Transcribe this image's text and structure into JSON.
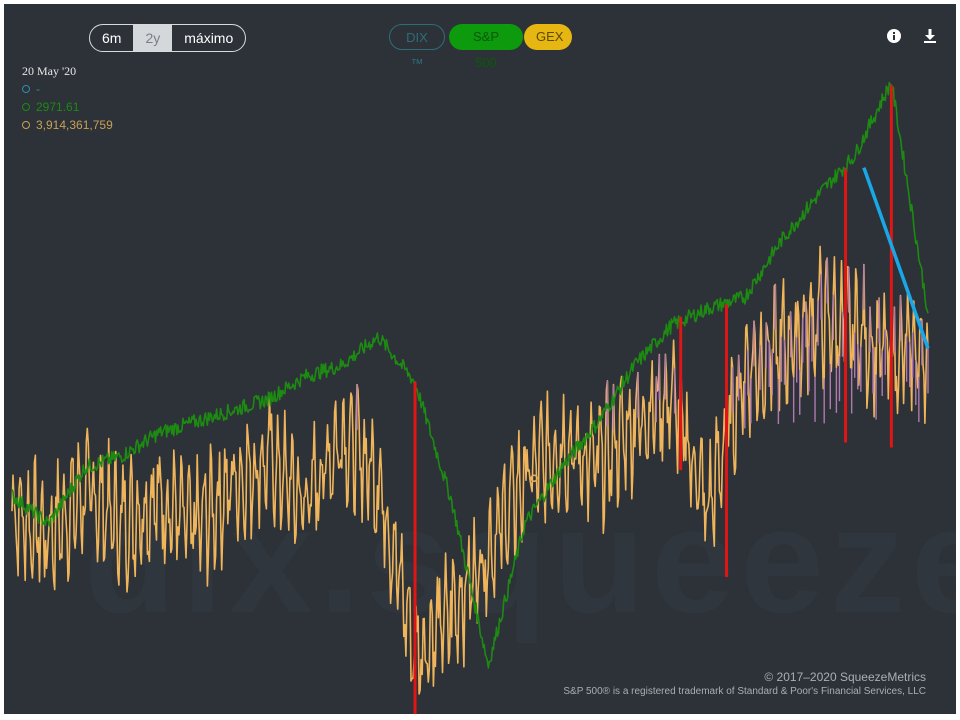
{
  "controls": {
    "range": [
      {
        "label": "6m",
        "active": false
      },
      {
        "label": "2y",
        "active": true
      },
      {
        "label": "máximo",
        "active": false
      }
    ],
    "series_toggles": [
      {
        "label": "DIX ™",
        "state": "off"
      },
      {
        "label": "S&P 500",
        "state": "on"
      },
      {
        "label": "GEX",
        "state": "on"
      }
    ],
    "icons": [
      "info-icon",
      "download-icon"
    ]
  },
  "legend": {
    "date": "20 May '20",
    "dix_value": "-",
    "sp_value": "2971.61",
    "gex_value": "3,914,361,759"
  },
  "watermark": "dix.squeeze.c",
  "footer": {
    "copyright": "© 2017–2020 SqueezeMetrics",
    "trademark": "S&P 500® is a registered trademark of Standard & Poor's Financial Services, LLC"
  },
  "colors": {
    "background": "#2c3238",
    "sp500": "#1d8a12",
    "gex": "#f0b45a",
    "gex_high": "#b07ab0",
    "annotation_red": "#e01515",
    "annotation_blue": "#1aa7e8",
    "dix": "#2f8fa8"
  },
  "chart_data": {
    "type": "line",
    "x_range": [
      "2018-05",
      "2020-05"
    ],
    "grid": false,
    "series": [
      {
        "name": "S&P 500",
        "key": "sp500",
        "x": [
          0,
          4,
          8,
          12,
          16,
          20,
          24,
          28,
          32,
          36,
          40,
          44,
          48,
          52,
          56,
          60,
          64,
          68,
          72,
          76,
          80,
          84,
          88,
          92,
          96,
          100
        ],
        "values": [
          2650,
          2600,
          2700,
          2720,
          2760,
          2780,
          2800,
          2820,
          2860,
          2880,
          2930,
          2850,
          2640,
          2351,
          2600,
          2700,
          2780,
          2880,
          2950,
          2980,
          3000,
          3100,
          3180,
          3250,
          3380,
          2971.61
        ]
      },
      {
        "name": "GEX",
        "key": "gex",
        "x": [
          0,
          4,
          8,
          12,
          16,
          20,
          24,
          28,
          32,
          36,
          40,
          44,
          48,
          52,
          56,
          60,
          64,
          68,
          72,
          76,
          80,
          84,
          88,
          92,
          96,
          100
        ],
        "values": [
          1400000000.0,
          1000000000.0,
          1700000000.0,
          1200000000.0,
          1600000000.0,
          1100000000.0,
          1800000000.0,
          2200000000.0,
          1500000000.0,
          2600000000.0,
          1900000000.0,
          -800000000.0,
          -200000000.0,
          800000000.0,
          1900000000.0,
          2400000000.0,
          2100000000.0,
          2800000000.0,
          3200000000.0,
          1400000000.0,
          3600000000.0,
          3900000000.0,
          4400000000.0,
          4200000000.0,
          3800000000.0,
          3914361759
        ]
      }
    ],
    "annotations": [
      {
        "type": "vertical-drop",
        "color": "red",
        "at_x": 44
      },
      {
        "type": "vertical-drop",
        "color": "red",
        "at_x": 73
      },
      {
        "type": "vertical-drop",
        "color": "red",
        "at_x": 78
      },
      {
        "type": "vertical-drop",
        "color": "red",
        "at_x": 91
      },
      {
        "type": "vertical-drop",
        "color": "red",
        "at_x": 96
      },
      {
        "type": "trend-arrow",
        "color": "blue",
        "from_x": 93,
        "to_x": 100
      }
    ]
  }
}
